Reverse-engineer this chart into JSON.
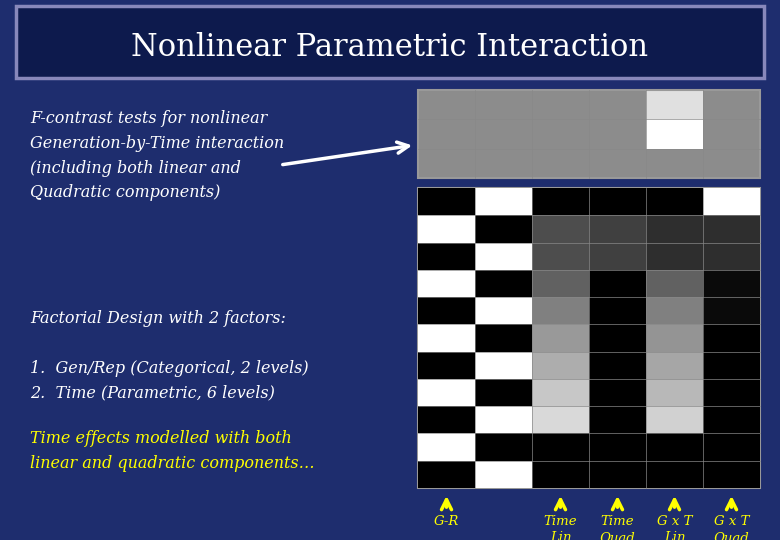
{
  "title": "Nonlinear Parametric Interaction",
  "bg_color": "#1e2d6e",
  "title_bg": "#0d1a4d",
  "title_border": "#8888bb",
  "text_color_yellow": "#ffff00",
  "text_color_white": "#ffffff",
  "body_text": [
    "F-contrast tests for nonlinear",
    "Generation-by-Time interaction",
    "(including both linear and",
    "Quadratic components)"
  ],
  "body2_text": [
    "Factorial Design with 2 factors:",
    "",
    "1.  Gen/Rep (Categorical, 2 levels)",
    "2.  Time (Parametric, 6 levels)"
  ],
  "body3_text": [
    "Time effects modelled with both",
    "linear and quadratic components…"
  ],
  "top_matrix": [
    [
      0.55,
      0.55,
      0.55,
      0.55,
      0.88,
      0.55
    ],
    [
      0.55,
      0.55,
      0.55,
      0.55,
      1.0,
      0.55
    ],
    [
      0.55,
      0.55,
      0.55,
      0.55,
      0.55,
      0.55
    ]
  ],
  "main_matrix": [
    [
      0.0,
      1.0,
      0.0,
      0.0,
      0.0,
      1.0
    ],
    [
      1.0,
      0.0,
      0.3,
      0.25,
      0.18,
      0.18
    ],
    [
      0.0,
      1.0,
      0.3,
      0.25,
      0.18,
      0.18
    ],
    [
      1.0,
      0.0,
      0.38,
      0.0,
      0.38,
      0.04
    ],
    [
      0.0,
      1.0,
      0.5,
      0.0,
      0.5,
      0.04
    ],
    [
      1.0,
      0.0,
      0.6,
      0.0,
      0.58,
      0.0
    ],
    [
      0.0,
      1.0,
      0.68,
      0.0,
      0.65,
      0.0
    ],
    [
      1.0,
      0.0,
      0.78,
      0.0,
      0.72,
      0.0
    ],
    [
      0.0,
      1.0,
      0.85,
      0.0,
      0.82,
      0.0
    ],
    [
      1.0,
      0.0,
      0.0,
      0.0,
      0.0,
      0.0
    ],
    [
      0.0,
      1.0,
      0.0,
      0.0,
      0.0,
      0.0
    ]
  ],
  "arrow_labels": [
    "G-R",
    "Time\nLin",
    "Time\nQuad",
    "G x T\nLin",
    "G x T\nQuad"
  ],
  "arrow_color": "#ffff00",
  "figsize": [
    7.8,
    5.4
  ],
  "dpi": 100
}
